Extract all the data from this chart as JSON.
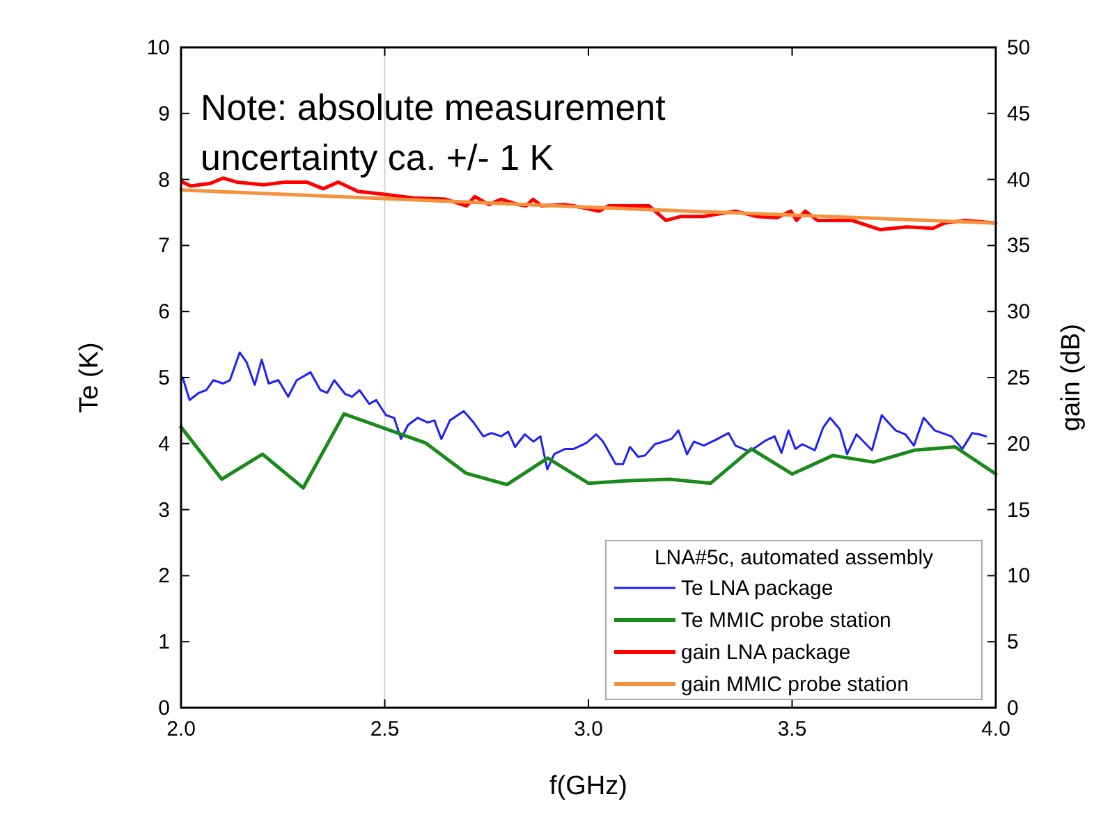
{
  "chart_data": {
    "type": "line",
    "xlabel": "f(GHz)",
    "ylabel": "Te (K)",
    "y2label": "gain (dB)",
    "legend_title": "LNA#5c, automated assembly",
    "legend": "bottom right",
    "grid": false,
    "marker": "none",
    "line_style": "solid",
    "xlim": [
      2.0,
      4.0
    ],
    "xticks": [
      {
        "value": 2.0,
        "label": "2.0"
      },
      {
        "value": 2.5,
        "label": "2.5"
      },
      {
        "value": 3.0,
        "label": "3.0"
      },
      {
        "value": 3.5,
        "label": "3.5"
      },
      {
        "value": 4.0,
        "label": "4.0"
      }
    ],
    "ylim": [
      0,
      10
    ],
    "yticks": [
      0,
      1,
      2,
      3,
      4,
      5,
      6,
      7,
      8,
      9,
      10
    ],
    "y2lim": [
      0,
      50
    ],
    "y2ticks": [
      0,
      5,
      10,
      15,
      20,
      25,
      30,
      35,
      40,
      45,
      50
    ],
    "ref_lines": [
      {
        "axis": "x",
        "value": 2.5,
        "color": "#d4d4d4"
      }
    ],
    "annotations": [
      "Note: absolute measurement uncertainty ca. +/- 1 K"
    ],
    "series": [
      {
        "name": "Te LNA package",
        "color": "#1f1fff",
        "x": [
          2.004,
          2.021,
          2.044,
          2.062,
          2.079,
          2.103,
          2.12,
          2.144,
          2.161,
          2.181,
          2.198,
          2.215,
          2.239,
          2.263,
          2.284,
          2.318,
          2.342,
          2.359,
          2.376,
          2.403,
          2.42,
          2.438,
          2.462,
          2.479,
          2.503,
          2.523,
          2.54,
          2.557,
          2.581,
          2.605,
          2.622,
          2.639,
          2.66,
          2.694,
          2.718,
          2.742,
          2.762,
          2.786,
          2.803,
          2.82,
          2.844,
          2.865,
          2.882,
          2.899,
          2.916,
          2.943,
          2.964,
          2.995,
          3.019,
          3.036,
          3.067,
          3.085,
          3.102,
          3.122,
          3.139,
          3.163,
          3.204,
          3.221,
          3.242,
          3.259,
          3.283,
          3.31,
          3.344,
          3.361,
          3.395,
          3.436,
          3.457,
          3.474,
          3.491,
          3.508,
          3.525,
          3.556,
          3.576,
          3.593,
          3.617,
          3.635,
          3.658,
          3.696,
          3.72,
          3.754,
          3.778,
          3.799,
          3.823,
          3.85,
          3.868,
          3.891,
          3.918,
          3.942,
          3.959,
          3.976
        ],
        "values": [
          5.0,
          4.66,
          4.77,
          4.81,
          4.96,
          4.91,
          4.96,
          5.38,
          5.23,
          4.89,
          5.27,
          4.91,
          4.96,
          4.71,
          4.96,
          5.08,
          4.81,
          4.77,
          4.96,
          4.75,
          4.71,
          4.81,
          4.6,
          4.66,
          4.43,
          4.39,
          4.07,
          4.28,
          4.39,
          4.32,
          4.35,
          4.07,
          4.35,
          4.49,
          4.32,
          4.11,
          4.16,
          4.11,
          4.18,
          3.95,
          4.14,
          4.03,
          4.11,
          3.61,
          3.84,
          3.92,
          3.92,
          4.01,
          4.14,
          4.03,
          3.69,
          3.69,
          3.95,
          3.8,
          3.82,
          3.99,
          4.07,
          4.2,
          3.84,
          4.03,
          3.97,
          4.05,
          4.16,
          3.97,
          3.88,
          4.05,
          4.11,
          3.86,
          4.2,
          3.92,
          3.99,
          3.9,
          4.24,
          4.39,
          4.22,
          3.84,
          4.14,
          3.9,
          4.43,
          4.2,
          4.14,
          3.97,
          4.39,
          4.2,
          4.16,
          4.11,
          3.92,
          4.16,
          4.14,
          4.11
        ]
      },
      {
        "name": "Te MMIC probe station",
        "color": "#1a8a1a",
        "x": [
          2.0,
          2.1,
          2.2,
          2.3,
          2.4,
          2.6,
          2.7,
          2.8,
          2.9,
          3.0,
          3.1,
          3.2,
          3.3,
          3.4,
          3.5,
          3.6,
          3.7,
          3.8,
          3.9,
          4.0
        ],
        "values": [
          4.25,
          3.46,
          3.84,
          3.33,
          4.45,
          4.01,
          3.55,
          3.38,
          3.78,
          3.4,
          3.44,
          3.46,
          3.4,
          3.92,
          3.54,
          3.82,
          3.72,
          3.9,
          3.95,
          3.54
        ]
      },
      {
        "name": "gain LNA package",
        "color": "#ff0000",
        "axis": "y2",
        "x": [
          2.004,
          2.024,
          2.072,
          2.103,
          2.137,
          2.202,
          2.256,
          2.308,
          2.349,
          2.386,
          2.434,
          2.492,
          2.571,
          2.65,
          2.701,
          2.721,
          2.756,
          2.786,
          2.827,
          2.847,
          2.864,
          2.885,
          2.94,
          2.964,
          3.026,
          3.05,
          3.121,
          3.149,
          3.19,
          3.228,
          3.282,
          3.361,
          3.412,
          3.463,
          3.497,
          3.511,
          3.532,
          3.562,
          3.647,
          3.716,
          3.781,
          3.846,
          3.874,
          3.925,
          4.0
        ],
        "values": [
          39.8,
          39.5,
          39.7,
          40.1,
          39.8,
          39.6,
          39.8,
          39.8,
          39.3,
          39.8,
          39.1,
          38.9,
          38.6,
          38.5,
          38.0,
          38.7,
          38.1,
          38.5,
          38.1,
          38.0,
          38.5,
          38.0,
          38.1,
          38.0,
          37.6,
          38.0,
          38.0,
          38.0,
          36.9,
          37.2,
          37.2,
          37.6,
          37.2,
          37.1,
          37.6,
          36.9,
          37.6,
          36.9,
          36.9,
          36.2,
          36.4,
          36.3,
          36.7,
          36.9,
          36.7
        ]
      },
      {
        "name": "gain MMIC probe station",
        "color": "#f5923e",
        "axis": "y2",
        "x": [
          2.0,
          3.0,
          4.0
        ],
        "values": [
          39.2,
          37.9,
          36.7
        ]
      }
    ]
  }
}
